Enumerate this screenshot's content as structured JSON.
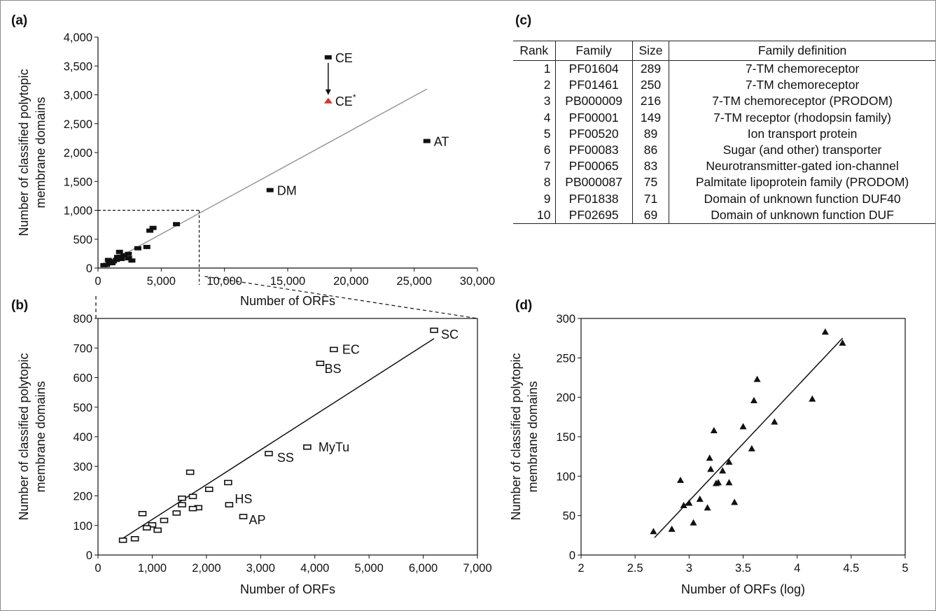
{
  "colors": {
    "ink": "#111111",
    "fit_gray": "#999999",
    "highlight": "#d9322a"
  },
  "panels": {
    "a": "(a)",
    "b": "(b)",
    "c": "(c)",
    "d": "(d)"
  },
  "chart_data": [
    {
      "id": "a",
      "type": "scatter",
      "xlabel": "Number of ORFs",
      "ylabel": [
        "Number of classified polytopic",
        "membrane domains"
      ],
      "xlim": [
        0,
        30000
      ],
      "ylim": [
        0,
        4000
      ],
      "xticks": [
        0,
        5000,
        10000,
        15000,
        20000,
        25000,
        30000
      ],
      "xtick_labels": [
        "0",
        "5,000",
        "10,000",
        "15,000",
        "20,000",
        "25,000",
        "30,000"
      ],
      "yticks": [
        0,
        500,
        1000,
        1500,
        2000,
        2500,
        3000,
        3500,
        4000
      ],
      "ytick_labels": [
        "0",
        "500",
        "1,000",
        "1,500",
        "2,000",
        "2,500",
        "3,000",
        "3,500",
        "4,000"
      ],
      "grid": false,
      "fit_line": {
        "x": [
          400,
          26000
        ],
        "y": [
          40,
          3100
        ]
      },
      "points": [
        {
          "x": 18200,
          "y": 3650,
          "label": "CE"
        },
        {
          "x": 26000,
          "y": 2200,
          "label": "AT"
        },
        {
          "x": 13600,
          "y": 1350,
          "label": "DM"
        },
        {
          "x": 6200,
          "y": 760
        },
        {
          "x": 4350,
          "y": 695
        },
        {
          "x": 4100,
          "y": 648
        },
        {
          "x": 3860,
          "y": 365
        },
        {
          "x": 3150,
          "y": 343
        },
        {
          "x": 1700,
          "y": 280
        },
        {
          "x": 2400,
          "y": 245
        },
        {
          "x": 2050,
          "y": 222
        },
        {
          "x": 1750,
          "y": 198
        },
        {
          "x": 1550,
          "y": 192
        },
        {
          "x": 1550,
          "y": 170
        },
        {
          "x": 2420,
          "y": 170
        },
        {
          "x": 1850,
          "y": 160
        },
        {
          "x": 1750,
          "y": 157
        },
        {
          "x": 1450,
          "y": 142
        },
        {
          "x": 820,
          "y": 140
        },
        {
          "x": 2680,
          "y": 130
        },
        {
          "x": 1220,
          "y": 117
        },
        {
          "x": 1000,
          "y": 102
        },
        {
          "x": 900,
          "y": 92
        },
        {
          "x": 1100,
          "y": 84
        },
        {
          "x": 680,
          "y": 55
        },
        {
          "x": 460,
          "y": 50
        }
      ],
      "highlight_point": {
        "x": 18200,
        "y": 2900,
        "label": "CE",
        "label_sup": "*"
      },
      "zoom_box": {
        "x": 8000,
        "y": 1000
      }
    },
    {
      "id": "b",
      "type": "scatter",
      "xlabel": "Number of ORFs",
      "ylabel": [
        "Number of classified polytopic",
        "membrane domains"
      ],
      "xlim": [
        0,
        7000
      ],
      "ylim": [
        0,
        800
      ],
      "xticks": [
        0,
        1000,
        2000,
        3000,
        4000,
        5000,
        6000,
        7000
      ],
      "xtick_labels": [
        "0",
        "1,000",
        "2,000",
        "3,000",
        "4,000",
        "5,000",
        "6,000",
        "7,000"
      ],
      "yticks": [
        0,
        100,
        200,
        300,
        400,
        500,
        600,
        700,
        800
      ],
      "ytick_labels": [
        "0",
        "100",
        "200",
        "300",
        "400",
        "500",
        "600",
        "700",
        "800"
      ],
      "grid": false,
      "fit_line": {
        "x": [
          420,
          6200
        ],
        "y": [
          52,
          732
        ]
      },
      "points": [
        {
          "x": 6200,
          "y": 760,
          "label": "SC"
        },
        {
          "x": 4350,
          "y": 695,
          "label": "EC"
        },
        {
          "x": 4100,
          "y": 648,
          "label": "BS"
        },
        {
          "x": 3860,
          "y": 365,
          "label": "MyTu"
        },
        {
          "x": 3150,
          "y": 343,
          "label": "SS"
        },
        {
          "x": 2420,
          "y": 170,
          "label": "HS"
        },
        {
          "x": 2680,
          "y": 130,
          "label": "AP"
        },
        {
          "x": 1700,
          "y": 280
        },
        {
          "x": 2400,
          "y": 245
        },
        {
          "x": 2050,
          "y": 222
        },
        {
          "x": 1750,
          "y": 198
        },
        {
          "x": 1550,
          "y": 192
        },
        {
          "x": 1550,
          "y": 170
        },
        {
          "x": 1850,
          "y": 160
        },
        {
          "x": 1750,
          "y": 157
        },
        {
          "x": 1450,
          "y": 142
        },
        {
          "x": 820,
          "y": 140
        },
        {
          "x": 1220,
          "y": 117
        },
        {
          "x": 1000,
          "y": 102
        },
        {
          "x": 900,
          "y": 92
        },
        {
          "x": 1100,
          "y": 84
        },
        {
          "x": 680,
          "y": 55
        },
        {
          "x": 460,
          "y": 50
        }
      ]
    },
    {
      "id": "d",
      "type": "scatter",
      "xlabel": "Number of ORFs (log)",
      "ylabel": [
        "Number of classified polytopic",
        "membrane domains"
      ],
      "xlim": [
        2,
        5
      ],
      "ylim": [
        0,
        300
      ],
      "xticks": [
        2,
        2.5,
        3,
        3.5,
        4,
        4.5,
        5
      ],
      "xtick_labels": [
        "2",
        "2.5",
        "3",
        "3.5",
        "4",
        "4.5",
        "5"
      ],
      "yticks": [
        0,
        50,
        100,
        150,
        200,
        250,
        300
      ],
      "ytick_labels": [
        "0",
        "50",
        "100",
        "150",
        "200",
        "250",
        "300"
      ],
      "grid": false,
      "fit_line": {
        "x": [
          2.68,
          4.42
        ],
        "y": [
          22,
          275
        ]
      },
      "points": [
        {
          "x": 2.67,
          "y": 30
        },
        {
          "x": 2.84,
          "y": 33
        },
        {
          "x": 2.92,
          "y": 95
        },
        {
          "x": 2.95,
          "y": 63
        },
        {
          "x": 3.0,
          "y": 66
        },
        {
          "x": 3.04,
          "y": 41
        },
        {
          "x": 3.1,
          "y": 71
        },
        {
          "x": 3.17,
          "y": 60
        },
        {
          "x": 3.19,
          "y": 123
        },
        {
          "x": 3.2,
          "y": 109
        },
        {
          "x": 3.23,
          "y": 158
        },
        {
          "x": 3.25,
          "y": 91
        },
        {
          "x": 3.27,
          "y": 92
        },
        {
          "x": 3.31,
          "y": 107
        },
        {
          "x": 3.37,
          "y": 118
        },
        {
          "x": 3.37,
          "y": 92
        },
        {
          "x": 3.42,
          "y": 67
        },
        {
          "x": 3.5,
          "y": 163
        },
        {
          "x": 3.58,
          "y": 135
        },
        {
          "x": 3.6,
          "y": 196
        },
        {
          "x": 3.63,
          "y": 223
        },
        {
          "x": 3.79,
          "y": 169
        },
        {
          "x": 4.14,
          "y": 198
        },
        {
          "x": 4.26,
          "y": 283
        },
        {
          "x": 4.42,
          "y": 269
        }
      ]
    }
  ],
  "table_c": {
    "headers": [
      "Rank",
      "Family",
      "Size",
      "Family definition"
    ],
    "rows": [
      [
        "1",
        "PF01604",
        "289",
        "7-TM chemoreceptor"
      ],
      [
        "2",
        "PF01461",
        "250",
        "7-TM chemoreceptor"
      ],
      [
        "3",
        "PB000009",
        "216",
        "7-TM chemoreceptor (PRODOM)"
      ],
      [
        "4",
        "PF00001",
        "149",
        "7-TM receptor (rhodopsin family)"
      ],
      [
        "5",
        "PF00520",
        "89",
        "Ion transport protein"
      ],
      [
        "6",
        "PF00083",
        "86",
        "Sugar (and other) transporter"
      ],
      [
        "7",
        "PF00065",
        "83",
        "Neurotransmitter-gated ion-channel"
      ],
      [
        "8",
        "PB000087",
        "75",
        "Palmitate lipoprotein family (PRODOM)"
      ],
      [
        "9",
        "PF01838",
        "71",
        "Domain of unknown function DUF40"
      ],
      [
        "10",
        "PF02695",
        "69",
        "Domain of unknown function DUF"
      ]
    ]
  }
}
